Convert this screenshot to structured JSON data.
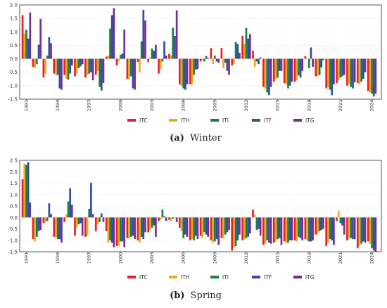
{
  "colors": {
    "ITC": "#e8202a",
    "ITH": "#f2a91e",
    "ITI": "#1a7f3c",
    "ITF": "#2f4da3",
    "ITG": "#7a2b8f"
  },
  "chart_data": [
    {
      "type": "bar",
      "caption_letter": "(a)",
      "caption_text": "Winter",
      "ylim": [
        -1.5,
        2.0
      ],
      "yticks": [
        "2.0",
        "1.5",
        "1.0",
        "0.5",
        "0.0",
        "-0.5",
        "-1.0",
        "-1.5"
      ],
      "ytick_values": [
        2.0,
        1.5,
        1.0,
        0.5,
        0.0,
        -0.5,
        -1.0,
        -1.5
      ],
      "xticks": [
        "1991",
        "1994",
        "1997",
        "2000",
        "2003",
        "2006",
        "2009",
        "2012",
        "2015",
        "2018",
        "2021",
        "2024"
      ],
      "grid": true,
      "legend_position": "bottom",
      "categories": [
        "1991",
        "1992",
        "1993",
        "1994",
        "1995",
        "1996",
        "1997",
        "1998",
        "1999",
        "2000",
        "2001",
        "2002",
        "2003",
        "2004",
        "2005",
        "2006",
        "2007",
        "2008",
        "2009",
        "2010",
        "2011",
        "2012",
        "2013",
        "2014",
        "2015",
        "2016",
        "2017",
        "2018",
        "2019",
        "2020",
        "2021",
        "2022",
        "2023",
        "2024"
      ],
      "series": [
        {
          "name": "ITC",
          "values": [
            1.62,
            -0.3,
            -0.7,
            -0.55,
            -0.6,
            -0.65,
            -0.7,
            -0.6,
            0.08,
            -0.25,
            -0.75,
            -0.12,
            -0.12,
            -0.55,
            0.18,
            -0.95,
            -0.95,
            -0.1,
            0.4,
            0.4,
            -0.25,
            0.85,
            0.3,
            -1.05,
            -0.85,
            -0.9,
            -0.85,
            0.1,
            -0.65,
            -1.1,
            -0.9,
            -1.0,
            -0.9,
            -1.2
          ]
        },
        {
          "name": "ITH",
          "values": [
            0.93,
            -0.35,
            -0.55,
            -0.6,
            -0.75,
            -0.55,
            -0.6,
            -0.45,
            0.12,
            -0.1,
            -0.75,
            -0.5,
            0.05,
            -0.4,
            0.12,
            -1.0,
            -0.95,
            -0.05,
            -0.2,
            -0.35,
            -0.2,
            0.55,
            -0.3,
            -1.1,
            -0.75,
            -0.95,
            -0.8,
            0.02,
            -0.65,
            -1.05,
            -0.8,
            -0.95,
            -0.95,
            -1.25
          ]
        },
        {
          "name": "ITI",
          "values": [
            1.08,
            -0.2,
            0.12,
            -0.6,
            -0.78,
            -0.35,
            -0.55,
            -1.05,
            1.12,
            0.15,
            -0.65,
            0.65,
            0.38,
            -0.1,
            1.15,
            -1.1,
            -0.6,
            -0.1,
            0.12,
            -0.15,
            0.62,
            1.15,
            -0.1,
            -1.25,
            -0.7,
            -1.1,
            -0.62,
            -0.35,
            -0.6,
            -1.15,
            -0.7,
            -1.05,
            -0.85,
            -1.3
          ]
        },
        {
          "name": "ITF",
          "values": [
            0.75,
            0.52,
            0.8,
            -1.1,
            -0.55,
            -0.28,
            -0.5,
            -1.18,
            1.62,
            0.2,
            -1.1,
            1.82,
            0.3,
            0.65,
            0.85,
            -1.15,
            -0.4,
            0.1,
            -0.1,
            -0.45,
            0.55,
            0.75,
            -0.2,
            -1.35,
            -0.45,
            -1.0,
            -0.7,
            0.42,
            -0.32,
            -1.35,
            -0.65,
            -1.1,
            -0.75,
            -1.4
          ]
        },
        {
          "name": "ITG",
          "values": [
            1.72,
            1.48,
            0.58,
            -1.15,
            -0.25,
            -0.2,
            -0.8,
            -0.9,
            1.88,
            1.08,
            -1.15,
            1.42,
            0.52,
            0.12,
            1.8,
            -0.95,
            -0.38,
            0.02,
            -0.15,
            -0.6,
            0.22,
            0.92,
            0.05,
            -1.05,
            -0.45,
            -0.85,
            -0.45,
            -0.3,
            -0.05,
            -0.95,
            -0.6,
            -0.88,
            -0.5,
            -1.3
          ]
        }
      ]
    },
    {
      "type": "bar",
      "caption_letter": "(b)",
      "caption_text": "Spring",
      "ylim": [
        -1.5,
        2.5
      ],
      "yticks": [
        "2.5",
        "2.0",
        "1.5",
        "1.0",
        "0.5",
        "0.0",
        "-0.5",
        "-1.0",
        "-1.5"
      ],
      "ytick_values": [
        2.5,
        2.0,
        1.5,
        1.0,
        0.5,
        0.0,
        -0.5,
        -1.0,
        -1.5
      ],
      "xticks": [
        "1991",
        "1994",
        "1997",
        "2000",
        "2003",
        "2006",
        "2009",
        "2012",
        "2015",
        "2018",
        "2021",
        "2024"
      ],
      "grid": true,
      "legend_position": "bottom",
      "categories": [
        "1991",
        "1992",
        "1993",
        "1994",
        "1995",
        "1996",
        "1997",
        "1998",
        "1999",
        "2000",
        "2001",
        "2002",
        "2003",
        "2004",
        "2005",
        "2006",
        "2007",
        "2008",
        "2009",
        "2010",
        "2011",
        "2012",
        "2013",
        "2014",
        "2015",
        "2016",
        "2017",
        "2018",
        "2019",
        "2020",
        "2021",
        "2022",
        "2023",
        "2024"
      ],
      "series": [
        {
          "name": "ITC",
          "values": [
            1.68,
            -0.95,
            -0.25,
            -0.85,
            -0.2,
            -0.8,
            -0.85,
            -0.6,
            -0.6,
            -1.25,
            -0.9,
            -1.0,
            -0.65,
            -0.15,
            -0.1,
            -0.45,
            -1.0,
            -0.8,
            -1.0,
            -0.9,
            -1.45,
            -1.0,
            0.35,
            -1.2,
            -1.1,
            -1.05,
            -1.0,
            -0.95,
            -0.75,
            -1.25,
            -0.15,
            -1.0,
            -1.35,
            -1.05
          ]
        },
        {
          "name": "ITH",
          "values": [
            2.35,
            -1.05,
            -0.2,
            -0.85,
            0.15,
            -0.45,
            -0.8,
            -0.3,
            -1.1,
            -1.25,
            -0.9,
            -1.1,
            -0.55,
            -0.1,
            -0.15,
            -0.6,
            -0.95,
            -0.9,
            -1.1,
            -0.9,
            -1.3,
            -0.95,
            0.12,
            -1.15,
            -1.05,
            -1.1,
            -1.05,
            -1.0,
            -0.7,
            -1.1,
            0.3,
            -0.9,
            -1.25,
            -1.15
          ]
        },
        {
          "name": "ITI",
          "values": [
            2.3,
            -0.85,
            -0.15,
            -0.95,
            0.7,
            -0.3,
            0.38,
            -0.2,
            -1.0,
            -1.05,
            -0.85,
            -0.85,
            -0.45,
            0.35,
            -0.05,
            -0.9,
            -1.0,
            -0.65,
            -1.05,
            -0.75,
            -1.25,
            -0.9,
            -0.55,
            -1.0,
            -0.95,
            -1.1,
            -0.85,
            -1.05,
            -0.6,
            -0.95,
            -0.25,
            -0.9,
            -1.15,
            -1.35
          ]
        },
        {
          "name": "ITF",
          "values": [
            2.42,
            -0.6,
            0.62,
            -0.95,
            1.28,
            -0.25,
            1.52,
            0.18,
            -1.1,
            -1.05,
            -0.8,
            -0.95,
            -0.35,
            0.05,
            0.0,
            -0.75,
            -0.8,
            -0.75,
            -0.95,
            -0.65,
            -1.0,
            -0.85,
            -0.5,
            -1.1,
            -0.9,
            -1.0,
            -0.9,
            -1.05,
            -0.55,
            -1.0,
            -0.35,
            -0.95,
            -1.05,
            -1.45
          ]
        },
        {
          "name": "ITG",
          "values": [
            0.65,
            -0.55,
            0.15,
            -1.1,
            0.55,
            -0.8,
            0.15,
            -0.2,
            -1.3,
            -1.3,
            -0.95,
            -0.65,
            -0.85,
            -0.15,
            -0.2,
            -0.85,
            -0.95,
            -0.85,
            -1.2,
            -0.55,
            -0.75,
            -0.7,
            -0.8,
            -1.15,
            -1.2,
            -1.0,
            -1.0,
            -1.0,
            -0.5,
            -1.2,
            -0.75,
            -0.95,
            -1.1,
            -1.5
          ]
        }
      ]
    }
  ]
}
